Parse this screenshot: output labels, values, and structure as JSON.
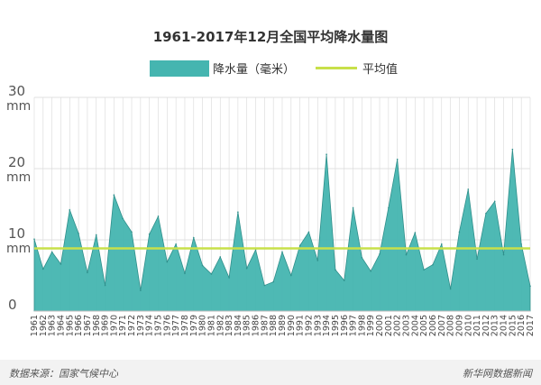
{
  "chart_data": {
    "type": "area",
    "title": "1961-2017年12月全国平均降水量图",
    "x": [
      "1961",
      "1962",
      "1963",
      "1964",
      "1965",
      "1966",
      "1967",
      "1968",
      "1969",
      "1970",
      "1971",
      "1972",
      "1973",
      "1974",
      "1975",
      "1976",
      "1977",
      "1978",
      "1979",
      "1980",
      "1981",
      "1982",
      "1983",
      "1984",
      "1985",
      "1986",
      "1987",
      "1988",
      "1989",
      "1990",
      "1991",
      "1992",
      "1993",
      "1994",
      "1995",
      "1996",
      "1997",
      "1998",
      "1999",
      "2000",
      "2001",
      "2002",
      "2003",
      "2004",
      "2005",
      "2006",
      "2007",
      "2008",
      "2009",
      "2010",
      "2011",
      "2012",
      "2013",
      "2014",
      "2015",
      "2016",
      "2017"
    ],
    "series": [
      {
        "name": "降水量（毫米）",
        "type": "area",
        "color": "#45b5b0",
        "values": [
          10.1,
          5.9,
          8.3,
          6.6,
          14.2,
          10.9,
          5.4,
          10.7,
          3.6,
          16.3,
          13.0,
          11.1,
          2.9,
          10.8,
          13.3,
          6.9,
          9.4,
          5.3,
          10.3,
          6.4,
          5.2,
          7.6,
          4.7,
          13.9,
          6.0,
          8.6,
          3.6,
          4.1,
          8.3,
          5.0,
          9.2,
          11.1,
          7.1,
          22.0,
          5.8,
          4.3,
          14.5,
          7.5,
          5.6,
          8.0,
          14.5,
          21.3,
          7.9,
          11.0,
          5.8,
          6.5,
          9.4,
          3.1,
          11.1,
          17.1,
          7.3,
          13.7,
          15.4,
          7.9,
          22.7,
          9.4,
          3.5
        ]
      },
      {
        "name": "平均值",
        "type": "line",
        "color": "#c8e04a",
        "values": [
          8.8,
          8.8,
          8.8,
          8.8,
          8.8,
          8.8,
          8.8,
          8.8,
          8.8,
          8.8,
          8.8,
          8.8,
          8.8,
          8.8,
          8.8,
          8.8,
          8.8,
          8.8,
          8.8,
          8.8,
          8.8,
          8.8,
          8.8,
          8.8,
          8.8,
          8.8,
          8.8,
          8.8,
          8.8,
          8.8,
          8.8,
          8.8,
          8.8,
          8.8,
          8.8,
          8.8,
          8.8,
          8.8,
          8.8,
          8.8,
          8.8,
          8.8,
          8.8,
          8.8,
          8.8,
          8.8,
          8.8,
          8.8,
          8.8,
          8.8,
          8.8,
          8.8,
          8.8,
          8.8,
          8.8,
          8.8,
          8.8
        ]
      }
    ],
    "ylim": [
      0,
      30
    ],
    "yticks": [
      {
        "value": 30,
        "line1": "30",
        "line2": "mm"
      },
      {
        "value": 20,
        "line1": "20",
        "line2": "mm"
      },
      {
        "value": 10,
        "line1": "10",
        "line2": "mm"
      },
      {
        "value": 0,
        "line1": "0",
        "line2": ""
      }
    ],
    "grid": true,
    "legend_position": "top-center"
  },
  "legend": {
    "area_label": "降水量（毫米）",
    "line_label": "平均值"
  },
  "footer": {
    "source": "数据来源：国家气候中心",
    "brand": "新华网数据新闻"
  },
  "colors": {
    "area": "#45b5b0",
    "area_stroke": "#2f8f8b",
    "average": "#c8e04a",
    "grid": "#d8d8d8",
    "footer_bg": "#f2f2f2"
  }
}
